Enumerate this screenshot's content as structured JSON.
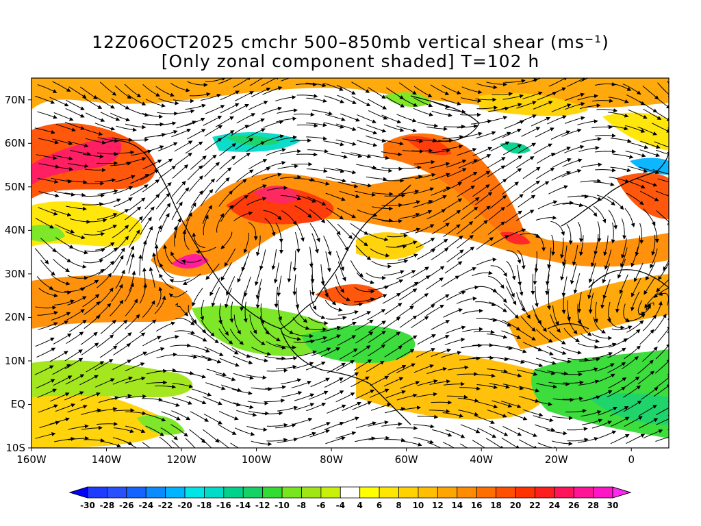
{
  "title": {
    "line1": "12Z06OCT2025 cmchr 500–850mb vertical shear (ms⁻¹)",
    "line2": "[Only zonal component shaded] T=102 h"
  },
  "map": {
    "lat_range": [
      -10,
      75
    ],
    "lon_range": [
      -160,
      10
    ],
    "lat_labels": [
      "70N",
      "60N",
      "50N",
      "40N",
      "30N",
      "20N",
      "10N",
      "EQ",
      "10S"
    ],
    "lon_labels": [
      "160W",
      "140W",
      "120W",
      "100W",
      "80W",
      "60W",
      "40W",
      "20W",
      "0"
    ]
  },
  "colorbar": {
    "labels": [
      "-30",
      "-28",
      "-26",
      "-24",
      "-22",
      "-20",
      "-18",
      "-16",
      "-14",
      "-12",
      "-10",
      "-8",
      "-6",
      "-4",
      "4",
      "6",
      "8",
      "10",
      "12",
      "14",
      "16",
      "18",
      "20",
      "22",
      "24",
      "26",
      "28",
      "30"
    ],
    "colors": [
      "#0000ff",
      "#1e3cff",
      "#2850ff",
      "#1464ff",
      "#0a8cff",
      "#00b4ff",
      "#00e6e6",
      "#00dcc8",
      "#00d28c",
      "#14d264",
      "#32dc32",
      "#78e61e",
      "#a0e614",
      "#c8f00a",
      "#ffffff",
      "#ffff00",
      "#ffe600",
      "#ffd200",
      "#ffbe00",
      "#ffa500",
      "#ff8c00",
      "#ff6e00",
      "#ff5000",
      "#ff3200",
      "#ff1e1e",
      "#ff145a",
      "#ff1496",
      "#ff14c8",
      "#ff28f0"
    ]
  }
}
